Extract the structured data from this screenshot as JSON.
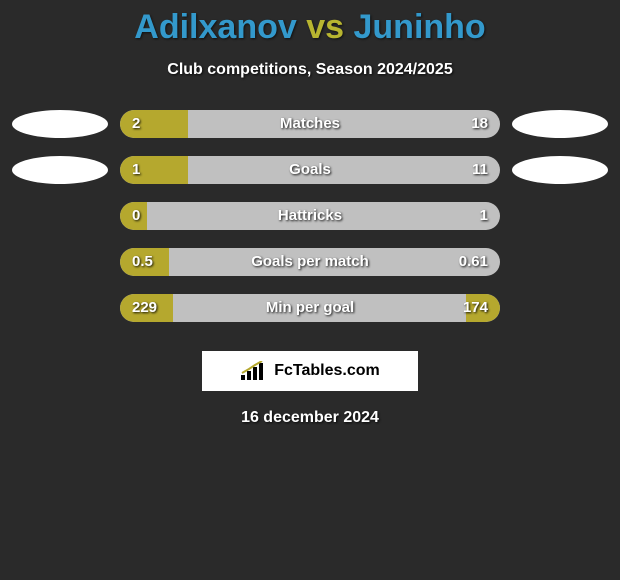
{
  "players": {
    "a": "Adilxanov",
    "b": "Juninho",
    "vs": "vs"
  },
  "subtitle": "Club competitions, Season 2024/2025",
  "date": "16 december 2024",
  "footer": {
    "label": "FcTables.com"
  },
  "colors": {
    "bar_fill": "#b5a82e",
    "bar_bg": "#c0c0c0",
    "background": "#2a2a2a",
    "title_player": "#3399cc",
    "title_vs": "#b8b530",
    "text": "#ffffff"
  },
  "stats": [
    {
      "label": "Matches",
      "left_val": "2",
      "right_val": "18",
      "left_pct": 18,
      "right_pct": 0,
      "show_left_logo": true,
      "show_right_logo": true
    },
    {
      "label": "Goals",
      "left_val": "1",
      "right_val": "11",
      "left_pct": 18,
      "right_pct": 0,
      "show_left_logo": true,
      "show_right_logo": true
    },
    {
      "label": "Hattricks",
      "left_val": "0",
      "right_val": "1",
      "left_pct": 7,
      "right_pct": 0,
      "show_left_logo": false,
      "show_right_logo": false
    },
    {
      "label": "Goals per match",
      "left_val": "0.5",
      "right_val": "0.61",
      "left_pct": 13,
      "right_pct": 0,
      "show_left_logo": false,
      "show_right_logo": false
    },
    {
      "label": "Min per goal",
      "left_val": "229",
      "right_val": "174",
      "left_pct": 14,
      "right_pct": 9,
      "show_left_logo": false,
      "show_right_logo": false
    }
  ]
}
